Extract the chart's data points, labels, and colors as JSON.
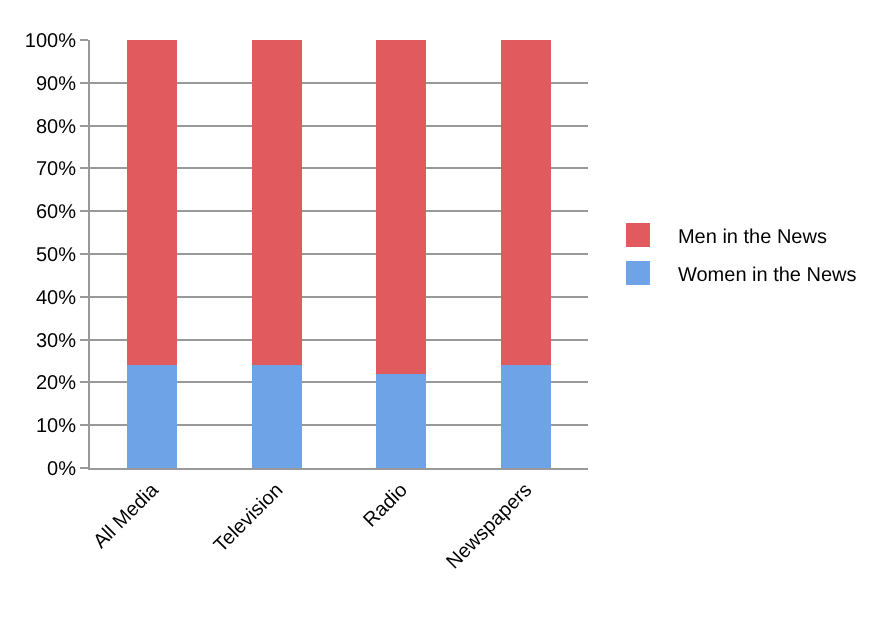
{
  "chart_data": {
    "type": "bar",
    "stacked": true,
    "categories": [
      "All Media",
      "Television",
      "Radio",
      "Newspapers"
    ],
    "series": [
      {
        "name": "Women in the News",
        "color": "#6fa3e8",
        "values": [
          24,
          24,
          22,
          24
        ]
      },
      {
        "name": "Men in the News",
        "color": "#e05a5e",
        "values": [
          76,
          76,
          78,
          76
        ]
      }
    ],
    "ylim": [
      0,
      100
    ],
    "yticks": [
      {
        "value": 0,
        "label": "0%"
      },
      {
        "value": 10,
        "label": "10%"
      },
      {
        "value": 20,
        "label": "20%"
      },
      {
        "value": 30,
        "label": "30%"
      },
      {
        "value": 40,
        "label": "40%"
      },
      {
        "value": 50,
        "label": "50%"
      },
      {
        "value": 60,
        "label": "60%"
      },
      {
        "value": 70,
        "label": "70%"
      },
      {
        "value": 80,
        "label": "80%"
      },
      {
        "value": 90,
        "label": "90%"
      },
      {
        "value": 100,
        "label": "100%"
      }
    ],
    "grid": "y",
    "legend": "right"
  }
}
